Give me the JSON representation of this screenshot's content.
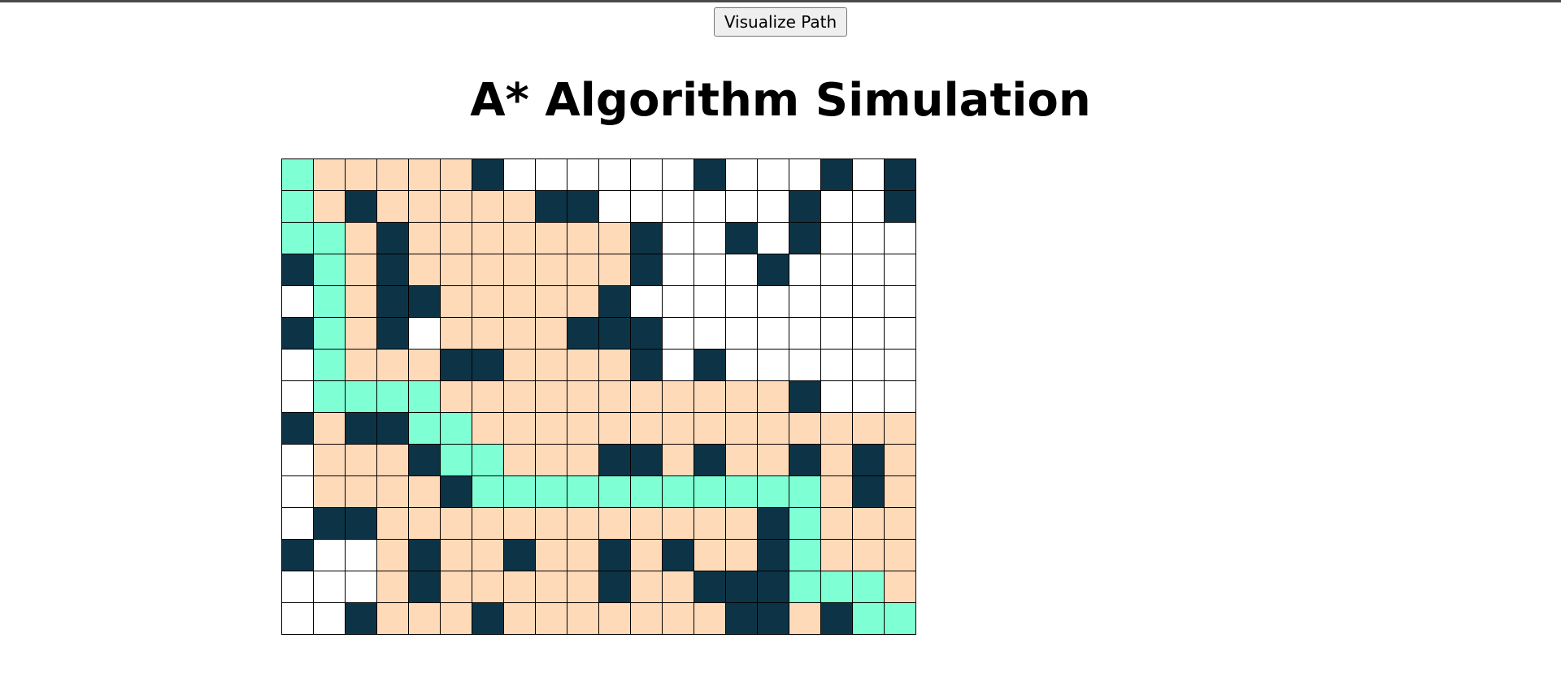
{
  "button": {
    "label": "Visualize Path"
  },
  "title": "A* Algorithm Simulation",
  "colors": {
    "empty": "#ffffff",
    "wall": "#0d3446",
    "visited": "#ffdab9",
    "path": "#7fffd4"
  },
  "grid": {
    "legend": {
      "E": "empty",
      "W": "wall",
      "V": "visited",
      "P": "path"
    },
    "rows": [
      "PVVVVVWEEEEEEWEEEWEW",
      "PVWVVVVVWWEEEEEEWEEW",
      "PPVWVVVVVVVWEEWEWEEE",
      "WPVWVVVVVVVWEEEWEEEE",
      "EPVWWVVVVVWEEEEEEEEE",
      "WPVWEVVVVWWWEEEEEEEE",
      "EPVVVWWVVVVWEWEEEEEE",
      "EPPPPVVVVVVVVVVVWEEE",
      "WVWWPPVVVVVVVVVVVVVV",
      "EVVVWPPVVVWWVWVVWVWV",
      "EVVVVWPPPPPPPPPPPVWV",
      "EWWVVVVVVVVVVVVWPVVV",
      "WEEVWVVWVVWVWVVWPVVV",
      "EEEVWVVVVVWVVWWWPPPV",
      "EEWVVVWVVVVVVVWWVWPP"
    ]
  }
}
